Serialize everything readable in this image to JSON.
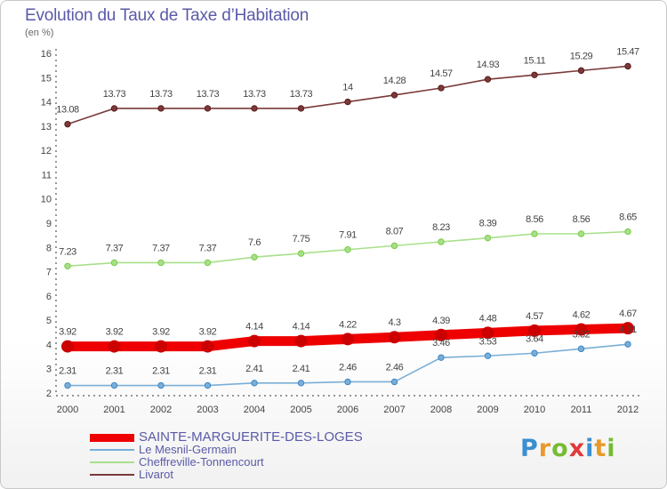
{
  "title": "Evolution du Taux de Taxe d’Habitation",
  "subtitle": "(en %)",
  "logo": [
    "P",
    "r",
    "o",
    "x",
    "i",
    "t",
    "i"
  ],
  "chart_data": {
    "type": "line",
    "categories": [
      "2000",
      "2001",
      "2002",
      "2003",
      "2004",
      "2005",
      "2006",
      "2007",
      "2008",
      "2009",
      "2010",
      "2011",
      "2012"
    ],
    "yticks": [
      2,
      3,
      4,
      5,
      6,
      7,
      8,
      9,
      10,
      11,
      12,
      13,
      14,
      15,
      16
    ],
    "ylim": [
      2,
      16
    ],
    "grid": false,
    "legend_position": "bottom-left",
    "series": [
      {
        "name": "SAINTE-MARGUERITE-DES-LOGES",
        "color": "#ee0000",
        "point_color": "#cc0000",
        "emphasis": true,
        "values": [
          3.92,
          3.92,
          3.92,
          3.92,
          4.14,
          4.14,
          4.22,
          4.3,
          4.39,
          4.48,
          4.57,
          4.62,
          4.67
        ],
        "labels": [
          "3.92",
          "3.92",
          "3.92",
          "3.92",
          "4.14",
          "4.14",
          "4.22",
          "4.3",
          "4.39",
          "4.48",
          "4.57",
          "4.62",
          "4.67"
        ]
      },
      {
        "name": "Le Mesnil-Germain",
        "color": "#7aaed6",
        "point_color": "#3c87c8",
        "emphasis": false,
        "values": [
          2.31,
          2.31,
          2.31,
          2.31,
          2.41,
          2.41,
          2.46,
          2.46,
          3.46,
          3.53,
          3.64,
          3.82,
          4.01
        ],
        "labels": [
          "2.31",
          "2.31",
          "2.31",
          "2.31",
          "2.41",
          "2.41",
          "2.46",
          "2.46",
          "3.46",
          "3.53",
          "3.64",
          "3.82",
          "4.01"
        ]
      },
      {
        "name": "Cheffreville-Tonnencourt",
        "color": "#a8e08a",
        "point_color": "#77cc44",
        "emphasis": false,
        "values": [
          7.23,
          7.37,
          7.37,
          7.37,
          7.6,
          7.75,
          7.91,
          8.07,
          8.23,
          8.39,
          8.56,
          8.56,
          8.65
        ],
        "labels": [
          "7.23",
          "7.37",
          "7.37",
          "7.37",
          "7.6",
          "7.75",
          "7.91",
          "8.07",
          "8.23",
          "8.39",
          "8.56",
          "8.56",
          "8.65"
        ]
      },
      {
        "name": "Livarot",
        "color": "#7a3a3a",
        "point_color": "#5a1a1a",
        "emphasis": false,
        "values": [
          13.08,
          13.73,
          13.73,
          13.73,
          13.73,
          13.73,
          14,
          14.28,
          14.57,
          14.93,
          15.11,
          15.29,
          15.47
        ],
        "labels": [
          "13.08",
          "13.73",
          "13.73",
          "13.73",
          "13.73",
          "13.73",
          "14",
          "14.28",
          "14.57",
          "14.93",
          "15.11",
          "15.29",
          "15.47"
        ]
      }
    ]
  }
}
